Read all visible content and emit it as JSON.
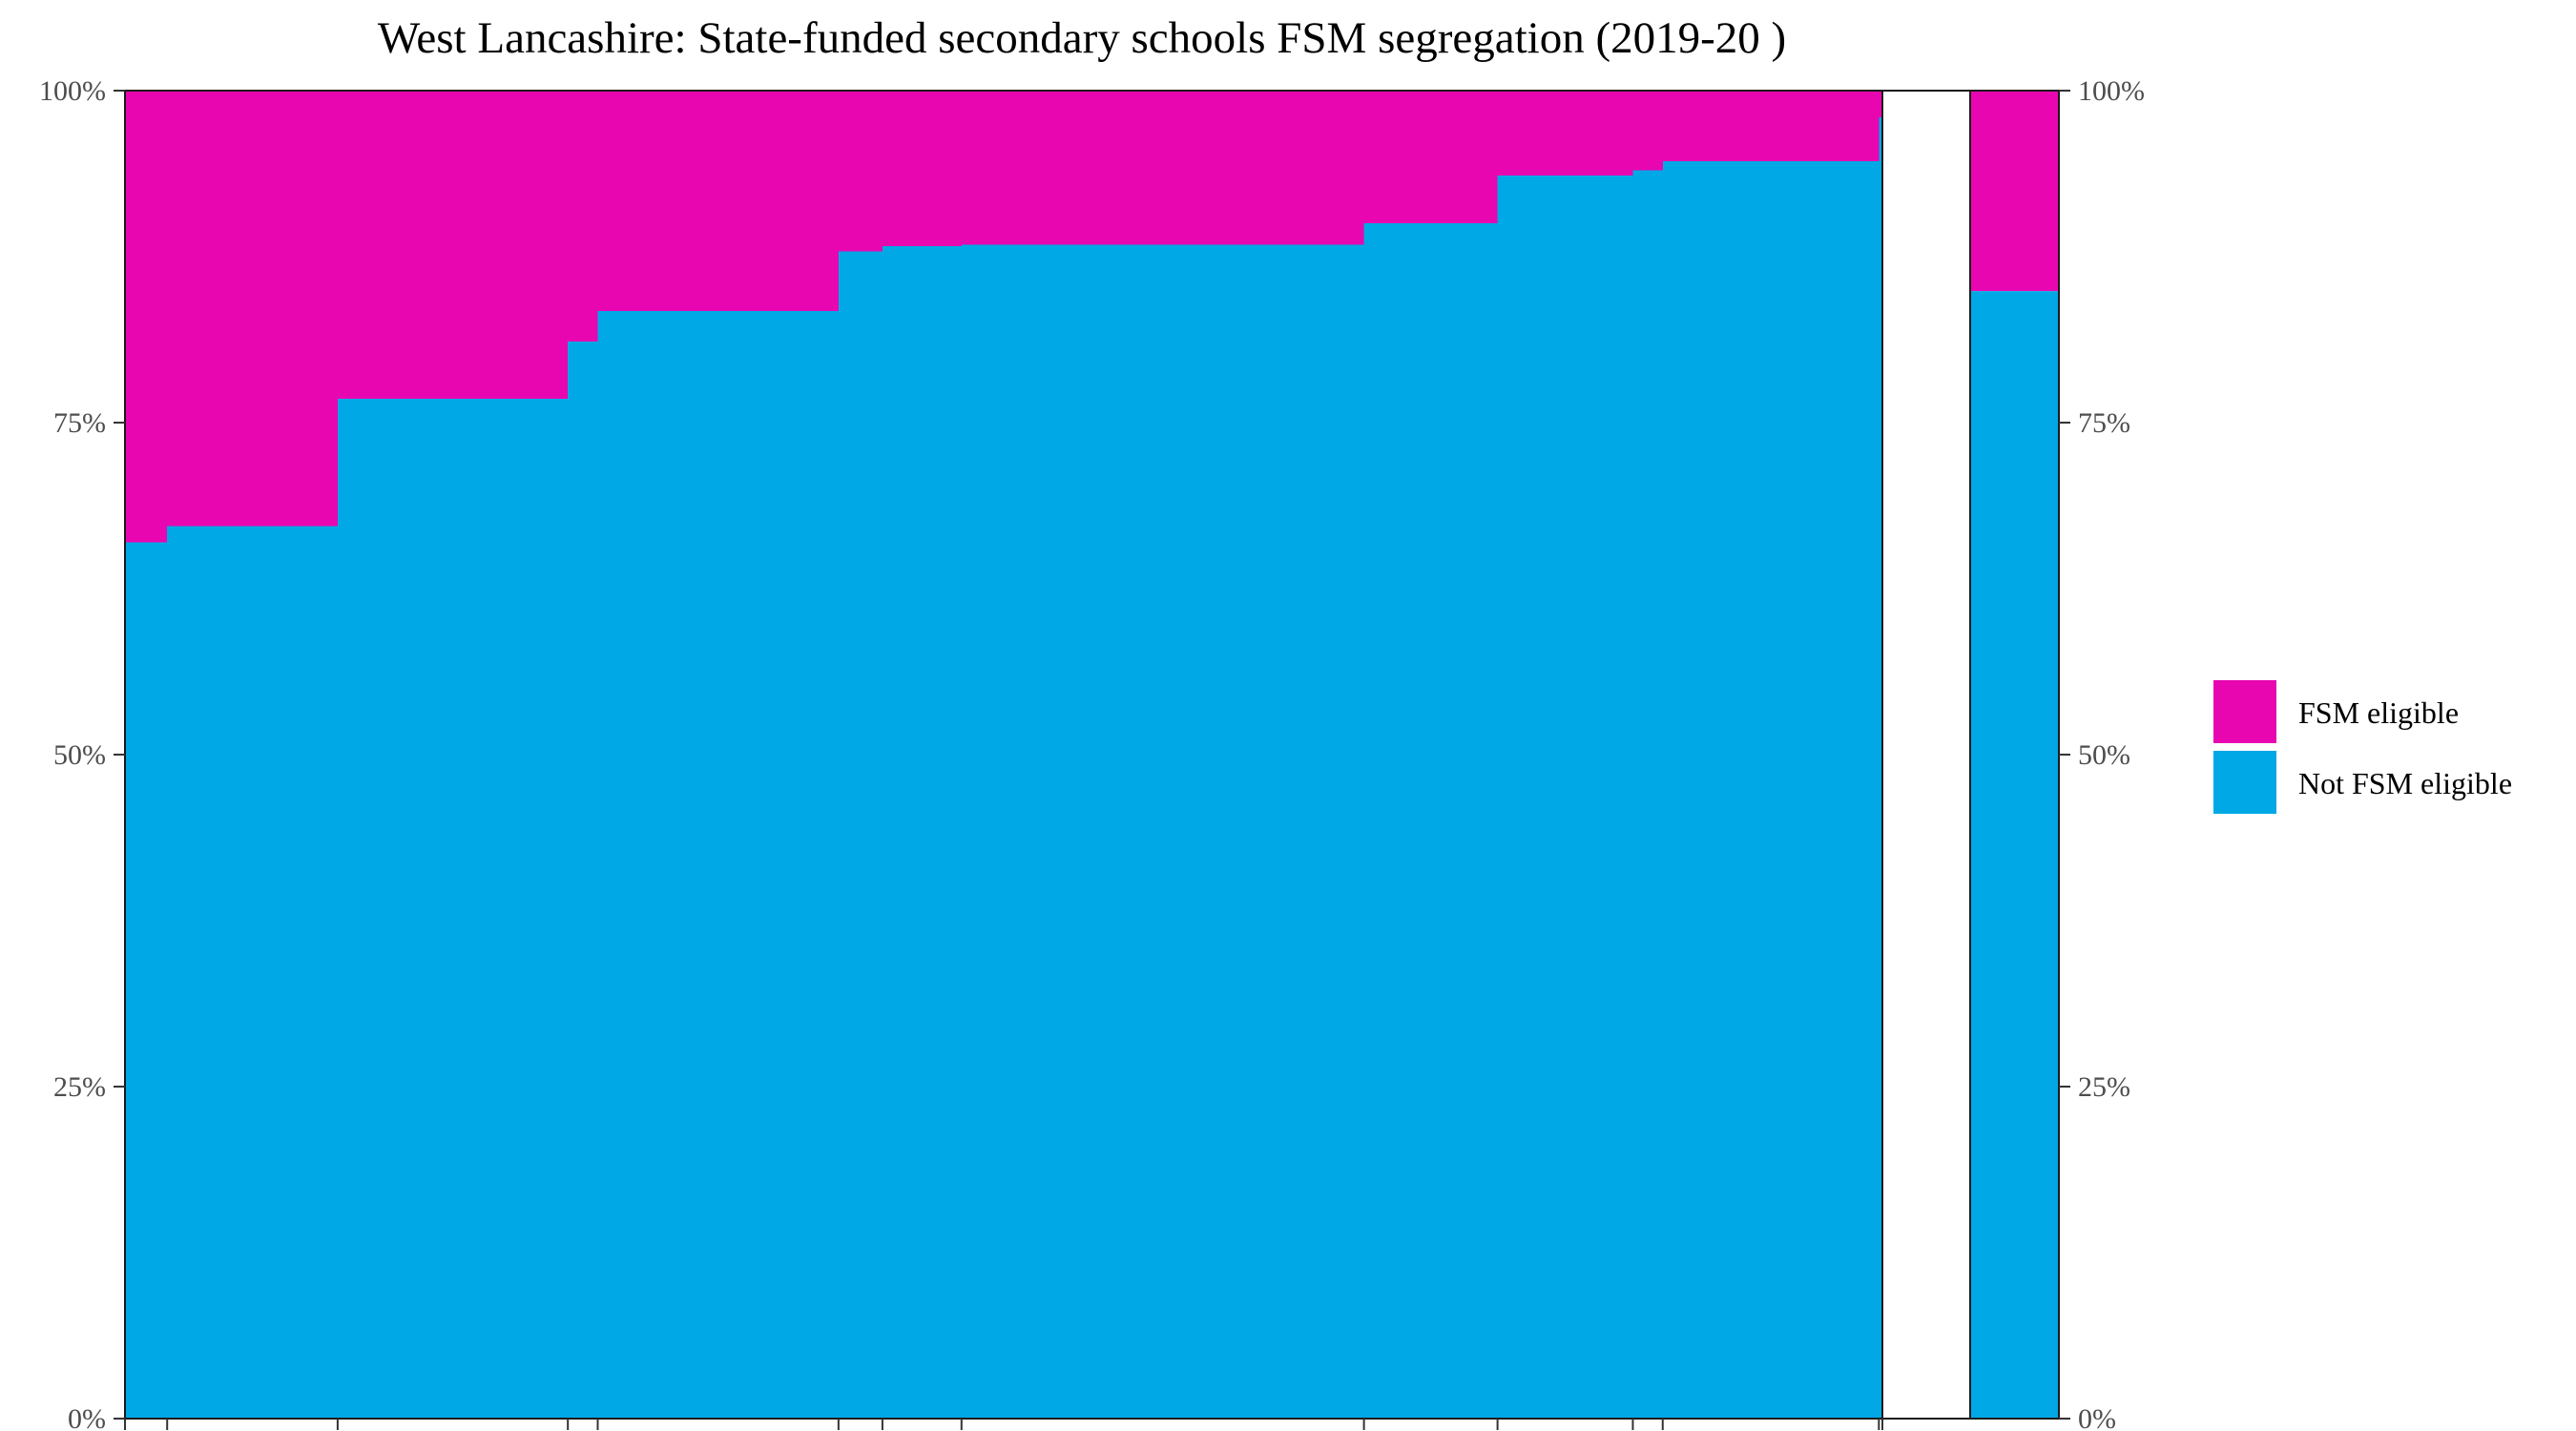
{
  "chart_data": {
    "type": "bar",
    "subtype": "stacked-proportional-variable-width",
    "title": "West Lancashire: State-funded secondary schools FSM segregation (2019-20 )",
    "xlabel": "",
    "ylabel": "",
    "ylim": [
      0,
      100
    ],
    "y_ticks": [
      "0%",
      "25%",
      "50%",
      "75%",
      "100%"
    ],
    "y_tick_values": [
      0,
      25,
      50,
      75,
      100
    ],
    "y_axis_both_sides": true,
    "grid": false,
    "legend_position": "right",
    "colors": {
      "FSM eligible": "#e806b1",
      "Not FSM eligible": "#00a8e6"
    },
    "series": [
      {
        "name": "FSM eligible"
      },
      {
        "name": "Not FSM eligible"
      }
    ],
    "schools": [
      {
        "x_start": 0.0,
        "x_end": 2.4,
        "not_fsm_pct": 66.0
      },
      {
        "x_start": 2.4,
        "x_end": 12.1,
        "not_fsm_pct": 67.2
      },
      {
        "x_start": 12.1,
        "x_end": 25.2,
        "not_fsm_pct": 76.8
      },
      {
        "x_start": 25.2,
        "x_end": 26.9,
        "not_fsm_pct": 81.1
      },
      {
        "x_start": 26.9,
        "x_end": 40.6,
        "not_fsm_pct": 83.4
      },
      {
        "x_start": 40.6,
        "x_end": 43.1,
        "not_fsm_pct": 87.9
      },
      {
        "x_start": 43.1,
        "x_end": 47.6,
        "not_fsm_pct": 88.3
      },
      {
        "x_start": 47.6,
        "x_end": 70.5,
        "not_fsm_pct": 88.4
      },
      {
        "x_start": 70.5,
        "x_end": 78.1,
        "not_fsm_pct": 90.0
      },
      {
        "x_start": 78.1,
        "x_end": 85.8,
        "not_fsm_pct": 93.6
      },
      {
        "x_start": 85.8,
        "x_end": 87.5,
        "not_fsm_pct": 94.0
      },
      {
        "x_start": 87.5,
        "x_end": 99.8,
        "not_fsm_pct": 94.7
      },
      {
        "x_start": 99.8,
        "x_end": 100.0,
        "not_fsm_pct": 98.0
      }
    ],
    "overall": {
      "not_fsm_pct": 84.9
    }
  }
}
